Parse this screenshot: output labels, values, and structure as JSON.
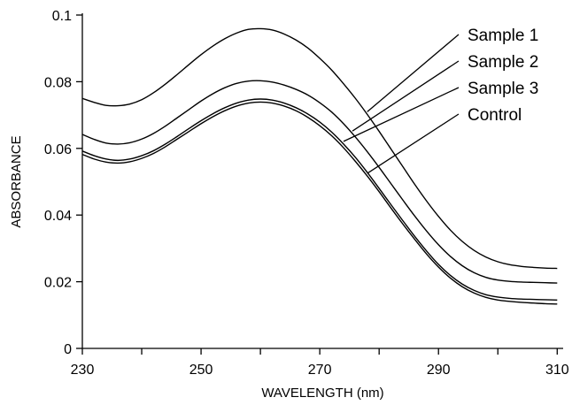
{
  "chart_data": {
    "type": "line",
    "title": "",
    "xlabel": "WAVELENGTH (nm)",
    "ylabel": "ABSORBANCE",
    "xlim": [
      230,
      311
    ],
    "ylim": [
      0,
      0.1
    ],
    "xticks": [
      230,
      250,
      270,
      290,
      310
    ],
    "xtick_labels": [
      "230",
      "250",
      "270",
      "290",
      "310"
    ],
    "x_minor_ticks": [
      240,
      260,
      280,
      300
    ],
    "yticks": [
      0,
      0.02,
      0.04,
      0.06,
      0.08,
      0.1
    ],
    "ytick_labels": [
      "0",
      "0.02",
      "0.04",
      "0.06",
      "0.08",
      "0.1"
    ],
    "grid": false,
    "legend": "top-right, leader lines to curves",
    "x": [
      230,
      232,
      234,
      236,
      238,
      240,
      242,
      244,
      246,
      248,
      250,
      252,
      254,
      256,
      258,
      260,
      262,
      264,
      266,
      268,
      270,
      272,
      274,
      276,
      278,
      280,
      282,
      284,
      286,
      288,
      290,
      292,
      294,
      296,
      298,
      300,
      302,
      304,
      306,
      308,
      310
    ],
    "series": [
      {
        "name": "Sample 1",
        "values": [
          0.075,
          0.0738,
          0.0729,
          0.0728,
          0.0733,
          0.0746,
          0.0767,
          0.0793,
          0.0822,
          0.0852,
          0.0881,
          0.0907,
          0.0929,
          0.0946,
          0.0957,
          0.0959,
          0.0955,
          0.0943,
          0.0925,
          0.0901,
          0.087,
          0.0835,
          0.0794,
          0.075,
          0.0702,
          0.0651,
          0.0598,
          0.0545,
          0.0492,
          0.0442,
          0.0396,
          0.0355,
          0.0321,
          0.0294,
          0.0274,
          0.026,
          0.0251,
          0.0246,
          0.0243,
          0.0241,
          0.024
        ]
      },
      {
        "name": "Sample 2",
        "values": [
          0.0642,
          0.0627,
          0.0616,
          0.0613,
          0.0617,
          0.0628,
          0.0645,
          0.0667,
          0.0692,
          0.0717,
          0.0742,
          0.0764,
          0.0782,
          0.0795,
          0.0802,
          0.0803,
          0.0799,
          0.079,
          0.0777,
          0.076,
          0.0737,
          0.0709,
          0.0674,
          0.0634,
          0.059,
          0.0543,
          0.0494,
          0.0445,
          0.0397,
          0.0352,
          0.0311,
          0.0276,
          0.0248,
          0.0227,
          0.0213,
          0.0205,
          0.0201,
          0.0199,
          0.0198,
          0.0197,
          0.0196
        ]
      },
      {
        "name": "Sample 3",
        "values": [
          0.0592,
          0.0578,
          0.0568,
          0.0564,
          0.0568,
          0.0578,
          0.0593,
          0.0613,
          0.0636,
          0.066,
          0.0683,
          0.0704,
          0.0722,
          0.0736,
          0.0745,
          0.0748,
          0.0745,
          0.0736,
          0.0722,
          0.0703,
          0.0679,
          0.0649,
          0.0613,
          0.0573,
          0.0528,
          0.048,
          0.0431,
          0.0383,
          0.0336,
          0.0292,
          0.0252,
          0.0219,
          0.0193,
          0.0174,
          0.0161,
          0.0154,
          0.015,
          0.0148,
          0.0147,
          0.0146,
          0.0145
        ]
      },
      {
        "name": "Control",
        "values": [
          0.0582,
          0.0568,
          0.0559,
          0.0556,
          0.056,
          0.057,
          0.0585,
          0.0605,
          0.0628,
          0.0651,
          0.0674,
          0.0695,
          0.0713,
          0.0727,
          0.0736,
          0.0739,
          0.0736,
          0.0727,
          0.0713,
          0.0693,
          0.0668,
          0.0638,
          0.0602,
          0.0561,
          0.0517,
          0.047,
          0.0421,
          0.0373,
          0.0327,
          0.0283,
          0.0244,
          0.0211,
          0.0185,
          0.0166,
          0.0153,
          0.0145,
          0.0141,
          0.0138,
          0.0136,
          0.0134,
          0.0133
        ]
      }
    ],
    "legend_entries": [
      {
        "series": "Sample 1",
        "label": "Sample 1",
        "order": 0,
        "curve_x": 278
      },
      {
        "series": "Sample 2",
        "label": "Sample 2",
        "order": 1,
        "curve_x": 275.5
      },
      {
        "series": "Sample 3",
        "label": "Sample 3",
        "order": 2,
        "curve_x": 274
      },
      {
        "series": "Control",
        "label": "Control",
        "order": 3,
        "curve_x": 278
      }
    ]
  }
}
